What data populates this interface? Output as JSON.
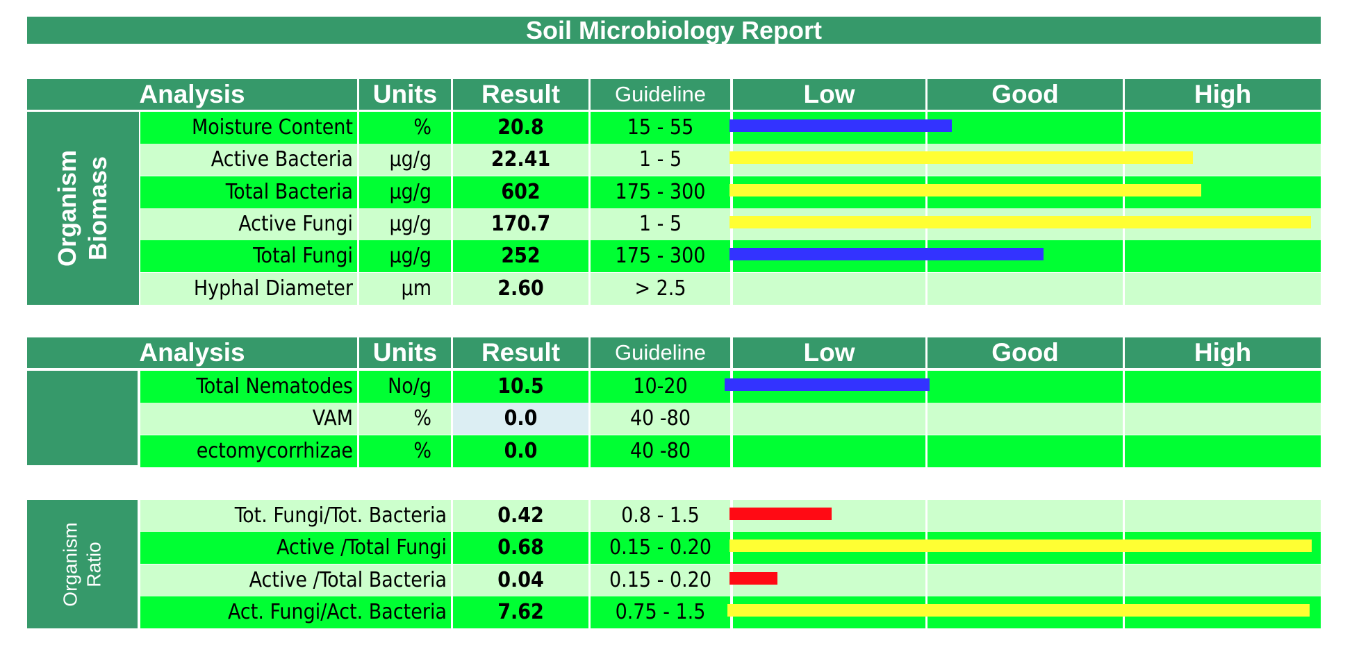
{
  "title": "Soil Microbiology Report",
  "headers": {
    "analysis": "Analysis",
    "units": "Units",
    "result": "Result",
    "guideline": "Guideline",
    "low": "Low",
    "good": "Good",
    "high": "High"
  },
  "biomass": {
    "side_label_line1": "Organism",
    "side_label_line2": "Biomass",
    "rows": [
      {
        "analysis": "Moisture Content",
        "units": "%",
        "result": "20.8",
        "guideline": "15 - 55",
        "bar_color": "#3333FF",
        "bar_end": 1370
      },
      {
        "analysis": "Active Bacteria",
        "units": "µg/g",
        "result": "22.41",
        "guideline": "1 - 5",
        "bar_color": "#FFFF33",
        "bar_end": 1717
      },
      {
        "analysis": "Total Bacteria",
        "units": "µg/g",
        "result": "602",
        "guideline": "175 - 300",
        "bar_color": "#FFFF33",
        "bar_end": 1729
      },
      {
        "analysis": "Active Fungi",
        "units": "µg/g",
        "result": "170.7",
        "guideline": "1 - 5",
        "bar_color": "#FFFF33",
        "bar_end": 1887
      },
      {
        "analysis": "Total Fungi",
        "units": "µg/g",
        "result": "252",
        "guideline": "175 - 300",
        "bar_color": "#3333FF",
        "bar_end": 1502
      },
      {
        "analysis": "Hyphal Diameter",
        "units": "µm",
        "result": "2.60",
        "guideline": "> 2.5",
        "bar_color": null,
        "bar_end": null
      }
    ]
  },
  "other": {
    "rows": [
      {
        "analysis": "Total Nematodes",
        "units": "No/g",
        "result": "10.5",
        "guideline": "10-20",
        "bar_color": "#3333FF",
        "bar_end": 1338
      },
      {
        "analysis": "VAM",
        "units": "%",
        "result": "0.0",
        "guideline": "40 -80",
        "bar_color": null,
        "bar_end": null
      },
      {
        "analysis": "ectomycorrhizae",
        "units": "%",
        "result": "0.0",
        "guideline": "40 -80",
        "bar_color": null,
        "bar_end": null
      }
    ]
  },
  "ratio": {
    "side_label_line1": "Organism",
    "side_label_line2": "Ratio",
    "rows": [
      {
        "analysis": "Tot. Fungi/Tot. Bacteria",
        "result": "0.42",
        "guideline": "0.8 - 1.5",
        "bar_color": "#FF0A14",
        "bar_end": 1197
      },
      {
        "analysis": "Active /Total Fungi",
        "result": "0.68",
        "guideline": "0.15 - 0.20",
        "bar_color": "#FFFF33",
        "bar_end": 1888
      },
      {
        "analysis": "Active /Total Bacteria",
        "result": "0.04",
        "guideline": "0.15 - 0.20",
        "bar_color": "#FF0A14",
        "bar_end": 1119
      },
      {
        "analysis": "Act. Fungi/Act. Bacteria",
        "result": "7.62",
        "guideline": "0.75 - 1.5",
        "bar_color": "#FFFF33",
        "bar_end": 1885
      }
    ]
  },
  "colors": {
    "header_green": "#36996A",
    "bright_green": "#00FF33",
    "pale_green": "#CCFFCC",
    "low_bar_blue": "#3333FF",
    "high_bar_yellow": "#FFFF33",
    "low_ratio_red": "#FF0A14"
  }
}
